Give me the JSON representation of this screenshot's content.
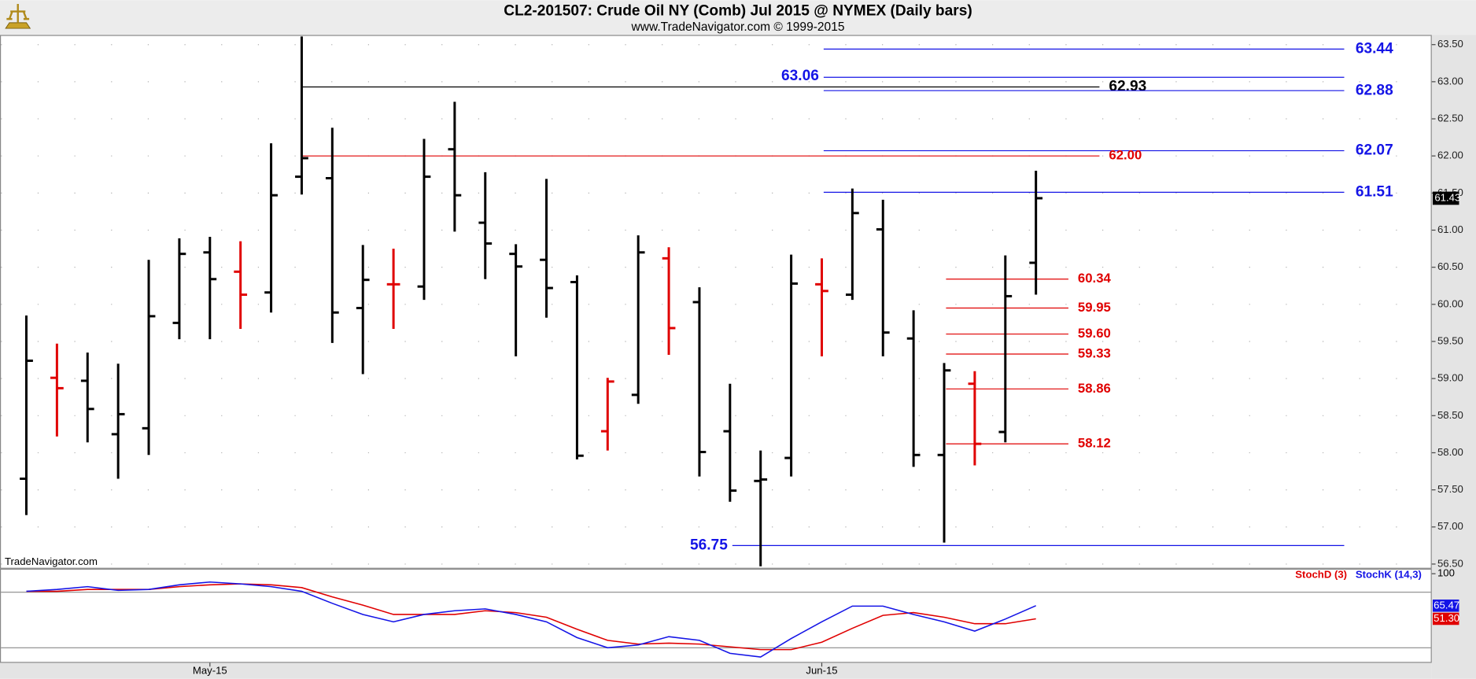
{
  "header": {
    "title": "CL2-201507:  Crude Oil NY (Comb) Jul 2015 @ NYMEX  (Daily bars)",
    "subtitle": "www.TradeNavigator.com © 1999-2015",
    "watermark": "TradeNavigator.com"
  },
  "chart_data": [
    {
      "type": "ohlc",
      "categories": [
        null,
        null,
        null,
        null,
        null,
        null,
        "May-15",
        null,
        null,
        null,
        null,
        null,
        null,
        null,
        null,
        null,
        null,
        null,
        null,
        null,
        null,
        null,
        null,
        null,
        null,
        null,
        "Jun-15",
        null,
        null,
        null,
        null,
        null,
        null,
        null
      ],
      "open": [
        57.65,
        59.01,
        58.97,
        58.25,
        58.33,
        59.75,
        60.7,
        60.44,
        60.16,
        61.72,
        61.7,
        59.95,
        60.27,
        60.24,
        62.09,
        61.1,
        60.68,
        60.6,
        60.3,
        58.29,
        58.78,
        60.62,
        60.03,
        58.29,
        57.62,
        57.93,
        60.27,
        60.13,
        61.01,
        59.54,
        57.97,
        58.93,
        58.28,
        60.56
      ],
      "high": [
        59.85,
        59.47,
        59.35,
        59.2,
        60.6,
        60.89,
        60.91,
        60.85,
        62.17,
        63.61,
        62.38,
        60.8,
        60.75,
        62.23,
        62.73,
        61.78,
        60.81,
        61.69,
        60.39,
        59.01,
        60.93,
        60.77,
        60.23,
        58.93,
        58.03,
        60.67,
        60.62,
        61.56,
        61.41,
        59.92,
        59.21,
        59.1,
        60.66,
        61.8
      ],
      "low": [
        57.16,
        58.22,
        58.14,
        57.65,
        57.97,
        59.53,
        59.53,
        59.67,
        59.89,
        61.48,
        59.48,
        59.06,
        59.67,
        60.06,
        60.98,
        60.34,
        59.3,
        59.82,
        57.91,
        58.03,
        58.66,
        59.32,
        57.68,
        57.34,
        56.47,
        57.68,
        59.3,
        60.06,
        59.3,
        57.81,
        56.79,
        57.83,
        58.14,
        60.13
      ],
      "close": [
        59.24,
        58.87,
        58.59,
        58.52,
        59.84,
        60.68,
        60.34,
        60.13,
        61.47,
        61.97,
        59.89,
        60.33,
        60.27,
        61.72,
        61.47,
        60.82,
        60.51,
        60.22,
        57.96,
        58.96,
        60.7,
        59.68,
        58.01,
        57.49,
        57.64,
        60.28,
        60.18,
        61.23,
        59.62,
        57.97,
        59.11,
        58.12,
        60.11,
        61.43
      ],
      "bar_colors": [
        "#000000",
        "#e00000",
        "#000000",
        "#000000",
        "#000000",
        "#000000",
        "#000000",
        "#e00000",
        "#000000",
        "#000000",
        "#000000",
        "#000000",
        "#e00000",
        "#000000",
        "#000000",
        "#000000",
        "#000000",
        "#000000",
        "#000000",
        "#e00000",
        "#000000",
        "#e00000",
        "#000000",
        "#000000",
        "#000000",
        "#000000",
        "#e00000",
        "#000000",
        "#000000",
        "#000000",
        "#000000",
        "#e00000",
        "#000000",
        "#000000"
      ],
      "ylim": [
        56.45,
        63.63
      ],
      "yticks": [
        {
          "value": 56.5,
          "label": "56.50"
        },
        {
          "value": 57,
          "label": "57.00"
        },
        {
          "value": 57.5,
          "label": "57.50"
        },
        {
          "value": 58,
          "label": "58.00"
        },
        {
          "value": 58.5,
          "label": "58.50"
        },
        {
          "value": 59,
          "label": "59.00"
        },
        {
          "value": 59.5,
          "label": "59.50"
        },
        {
          "value": 60,
          "label": "60.00"
        },
        {
          "value": 60.5,
          "label": "60.50"
        },
        {
          "value": 61,
          "label": "61.00"
        },
        {
          "value": 61.5,
          "label": "61.50"
        },
        {
          "value": 62,
          "label": "62.00"
        },
        {
          "value": 62.5,
          "label": "62.50"
        },
        {
          "value": 63,
          "label": "63.00"
        },
        {
          "value": 63.5,
          "label": "63.50"
        }
      ],
      "grid": true,
      "levels": [
        {
          "value": 63.44,
          "color": "#1414e6"
        },
        {
          "value": 63.06,
          "color": "#1414e6"
        },
        {
          "value": 62.93,
          "color": "#000000"
        },
        {
          "value": 62.88,
          "color": "#1414e6"
        },
        {
          "value": 62.07,
          "color": "#1414e6"
        },
        {
          "value": 62,
          "label": "62.00",
          "color": "#e00000"
        },
        {
          "value": 61.51,
          "color": "#1414e6"
        },
        {
          "value": 60.34,
          "color": "#e00000"
        },
        {
          "value": 59.95,
          "color": "#e00000"
        },
        {
          "value": 59.6,
          "label": "59.60",
          "color": "#e00000"
        },
        {
          "value": 59.33,
          "color": "#e00000"
        },
        {
          "value": 58.86,
          "color": "#e00000"
        },
        {
          "value": 58.12,
          "color": "#e00000"
        },
        {
          "value": 56.75,
          "color": "#1414e6"
        }
      ],
      "last_price": 61.43
    },
    {
      "type": "line",
      "ylim": [
        3.7,
        105.4
      ],
      "yticks": [
        100
      ],
      "hlines": [
        80,
        20
      ],
      "series": [
        {
          "name": "StochD (3)",
          "color": "#e00000",
          "last_label": "51.30",
          "values": [
            81,
            81,
            83,
            83,
            83,
            86,
            88,
            89,
            88,
            85,
            75,
            66,
            56,
            56,
            56,
            60,
            58,
            53,
            40,
            28,
            24,
            25,
            24,
            21,
            18,
            18,
            26,
            41,
            55,
            58,
            53,
            46,
            46,
            51.3
          ]
        },
        {
          "name": "StochK (14,3)",
          "color": "#1414e6",
          "last_label": "65.47",
          "values": [
            81,
            83,
            86,
            82,
            83,
            88,
            91,
            89,
            86,
            81,
            68,
            56,
            48,
            56,
            60,
            62,
            56,
            48,
            31,
            20,
            23,
            32,
            28,
            14,
            10,
            30,
            48,
            65,
            65,
            56,
            48,
            38,
            51,
            65.47
          ]
        }
      ]
    }
  ]
}
